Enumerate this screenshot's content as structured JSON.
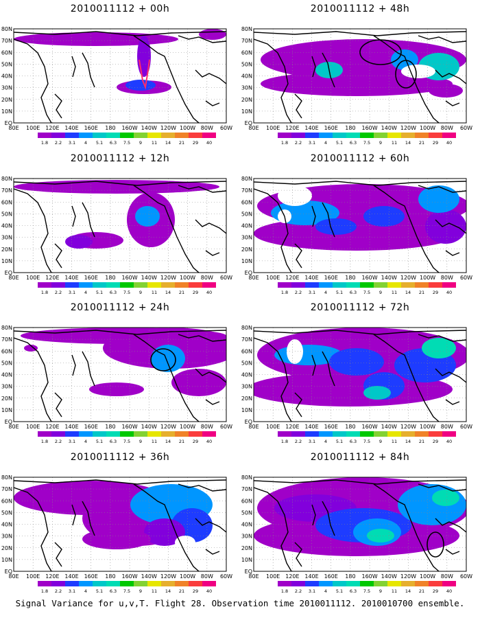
{
  "panels": [
    {
      "title": "2010011112 + 00h"
    },
    {
      "title": "2010011112 + 48h"
    },
    {
      "title": "2010011112 + 12h"
    },
    {
      "title": "2010011112 + 60h"
    },
    {
      "title": "2010011112 + 24h"
    },
    {
      "title": "2010011112 + 72h"
    },
    {
      "title": "2010011112 + 36h"
    },
    {
      "title": "2010011112 + 84h"
    }
  ],
  "lat_labels": [
    "80N",
    "70N",
    "60N",
    "50N",
    "40N",
    "30N",
    "20N",
    "10N",
    "EQ"
  ],
  "lon_labels": [
    "80E",
    "100E",
    "120E",
    "140E",
    "160E",
    "180",
    "160W",
    "140W",
    "120W",
    "100W",
    "80W",
    "60W"
  ],
  "colorbar": {
    "labels": [
      "1.8",
      "2.2",
      "3.1",
      "4",
      "5.1",
      "6.3",
      "7.5",
      "9",
      "11",
      "14",
      "21",
      "29",
      "40"
    ],
    "colors": [
      "#a000c8",
      "#8200dc",
      "#1e3cff",
      "#0096ff",
      "#00c8c8",
      "#00dcb4",
      "#00c800",
      "#82d232",
      "#e6e600",
      "#e6af2d",
      "#f08228",
      "#fa3c3c",
      "#f00082"
    ]
  },
  "footer": "Signal Variance for u,v,T. Flight 28. Observation time 2010011112. 2010010700 ensemble."
}
